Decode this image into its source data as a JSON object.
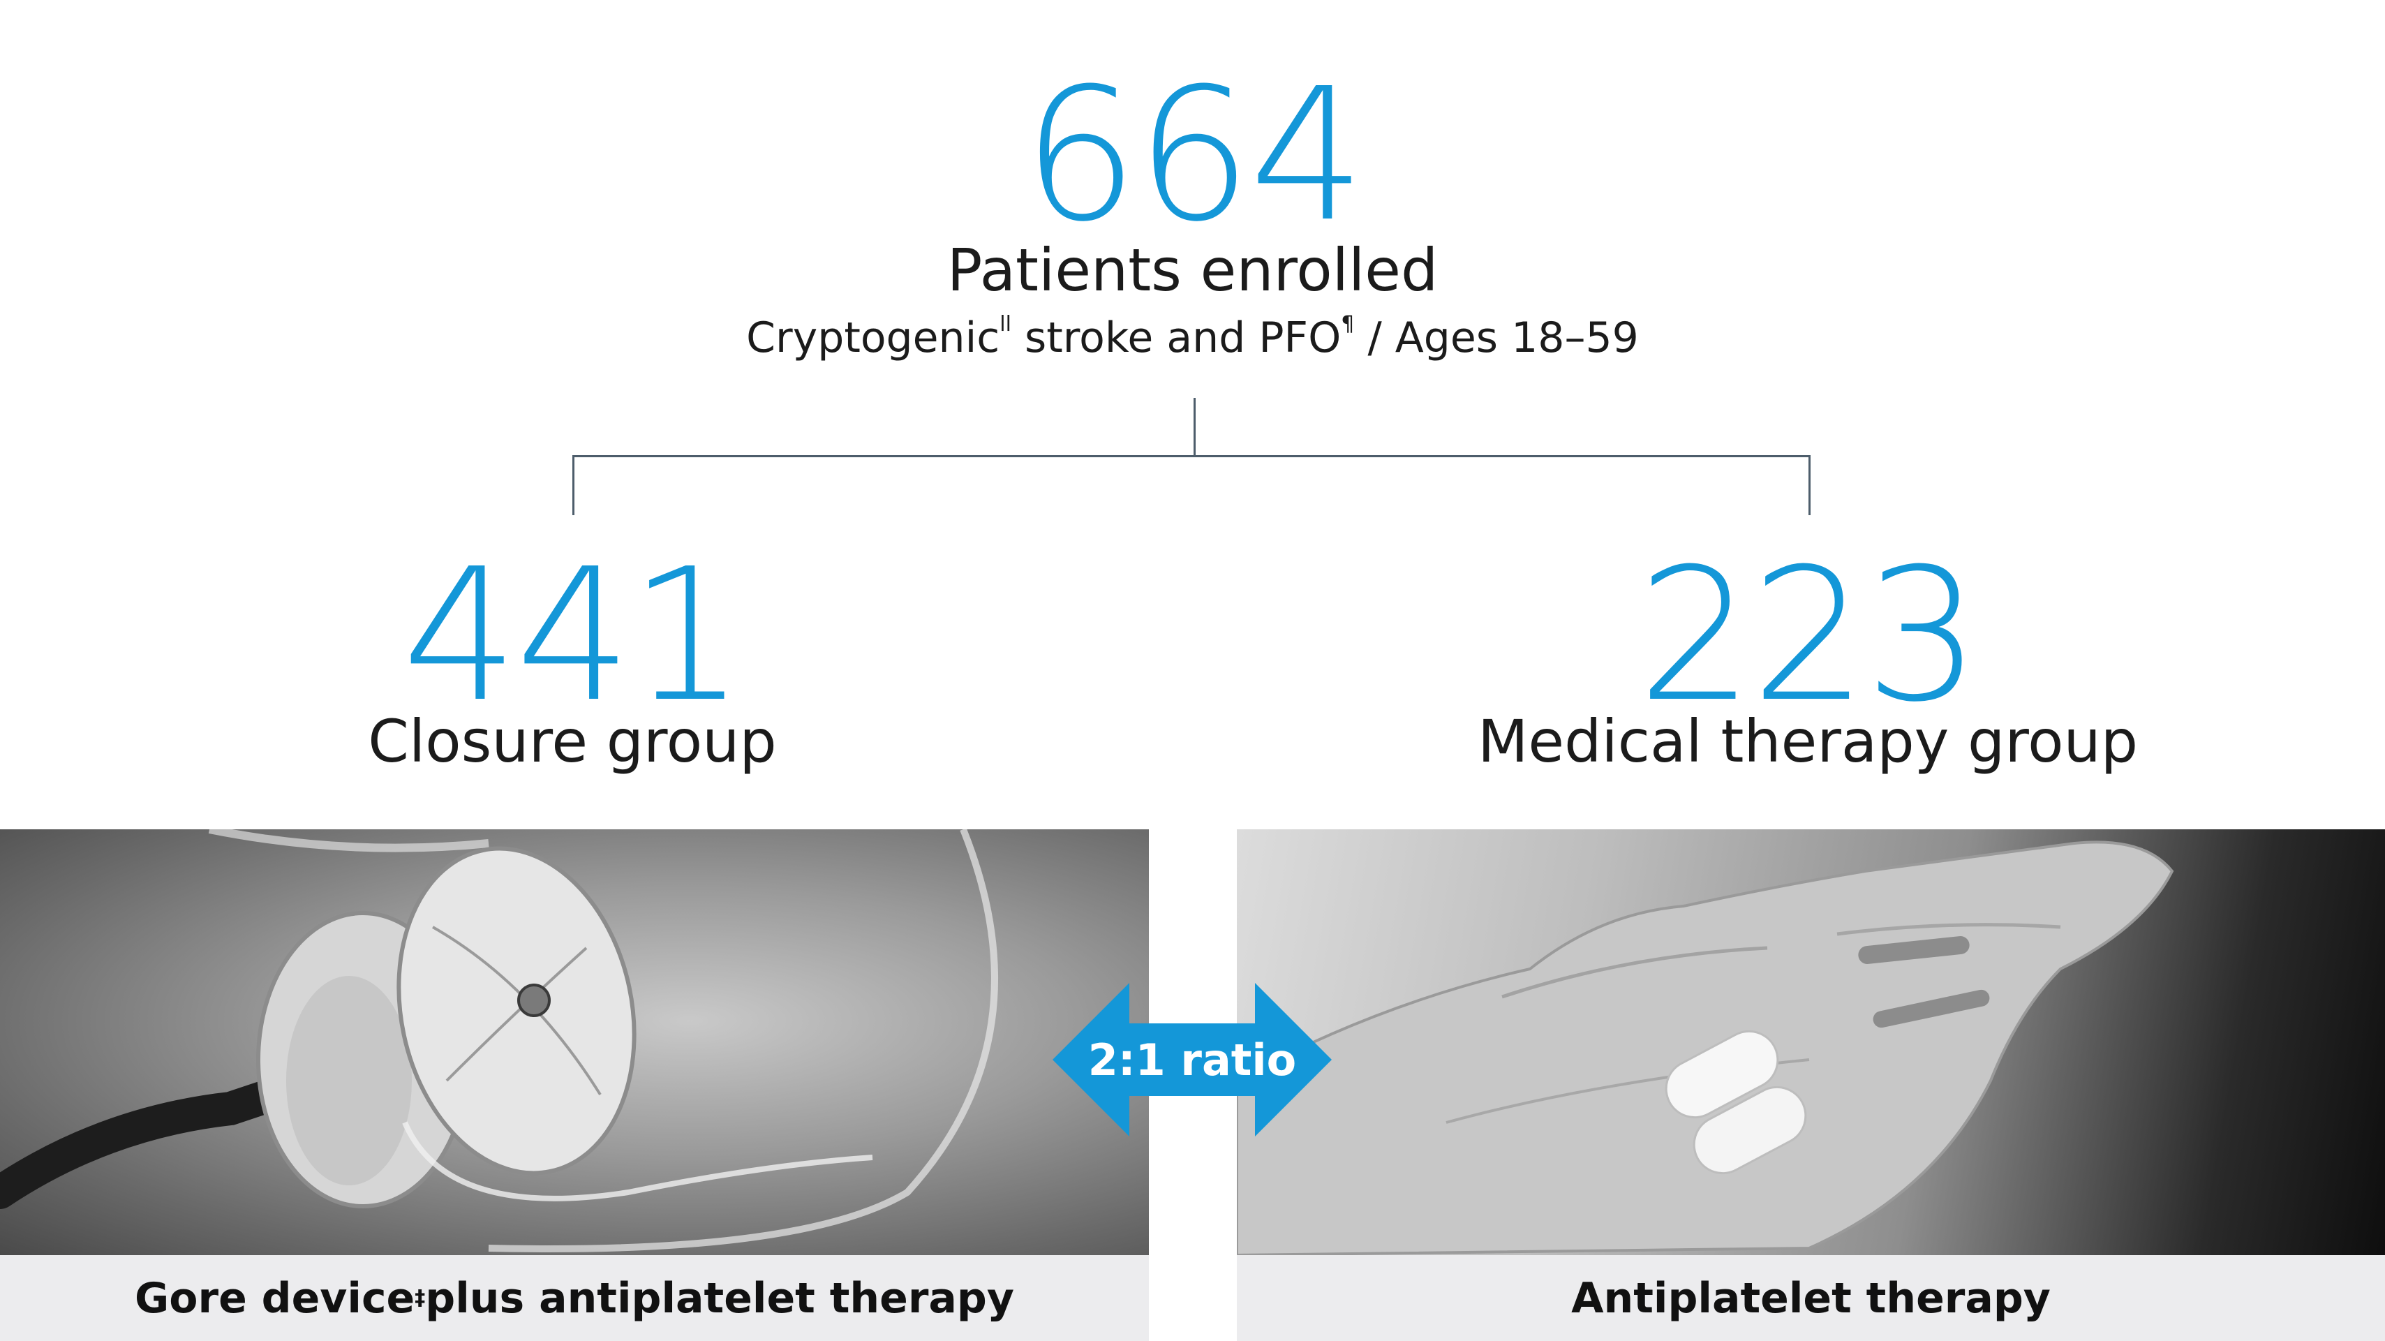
{
  "total": {
    "count": "664",
    "label": "Patients enrolled",
    "sub_part1": "Cryptogenic",
    "sub_sup1": "ll",
    "sub_part2": " stroke and PFO",
    "sub_sup2": "¶",
    "sub_part3": " / Ages 18–59"
  },
  "groups": {
    "closure": {
      "count": "441",
      "label": "Closure group"
    },
    "medical": {
      "count": "223",
      "label": "Medical therapy group"
    }
  },
  "ratio": {
    "label": "2:1 ratio"
  },
  "captions": {
    "left_part1": "Gore device",
    "left_sup": "‡",
    "left_part2": " plus antiplatelet therapy",
    "right": "Antiplatelet therapy"
  },
  "colors": {
    "accent": "#1497d8",
    "line": "#4d5d6b",
    "caption_bg": "#ececee"
  },
  "images": {
    "left": "occluder-device-photo",
    "right": "hand-with-pills-photo"
  }
}
